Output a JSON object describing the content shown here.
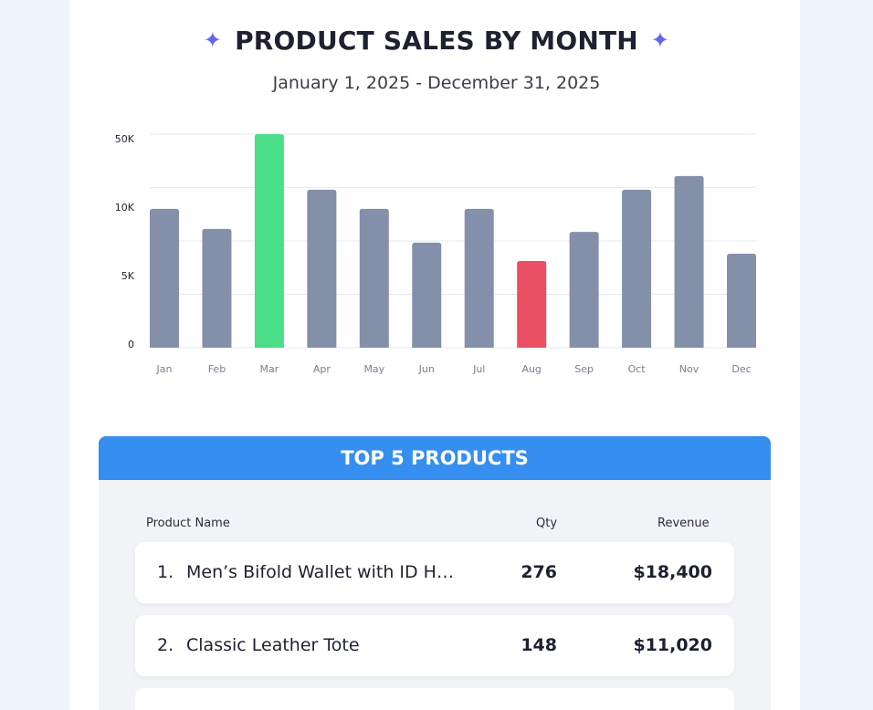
{
  "header": {
    "title": "PRODUCT SALES BY MONTH",
    "subtitle": "January 1, 2025 - December 31, 2025",
    "sparkle_icon": "sparkle-icon",
    "accent": "#6366f1"
  },
  "chart_data": {
    "type": "bar",
    "title": "PRODUCT SALES BY MONTH",
    "categories": [
      "Jan",
      "Feb",
      "Mar",
      "Apr",
      "May",
      "Jun",
      "Jul",
      "Aug",
      "Sep",
      "Oct",
      "Nov",
      "Dec"
    ],
    "values": [
      32500,
      27800,
      50000,
      37000,
      32500,
      24600,
      32500,
      20300,
      27100,
      37000,
      40200,
      22000
    ],
    "ytick_labels": [
      "0",
      "5K",
      "10K",
      "50K"
    ],
    "ylim": [
      0,
      50000
    ],
    "grid": true,
    "colors": {
      "default": "#8490aa",
      "highest": "#4ade88",
      "lowest": "#ea4f64"
    },
    "highlight": {
      "Mar": "highest",
      "Aug": "lowest"
    }
  },
  "table": {
    "title": "TOP 5 PRODUCTS",
    "header_color": "#358ef0",
    "columns": [
      "Product Name",
      "Qty",
      "Revenue"
    ],
    "rows": [
      {
        "rank": "1.",
        "name": "Men’s Bifold Wallet with ID Hol...",
        "qty": "276",
        "revenue": "$18,400"
      },
      {
        "rank": "2.",
        "name": "Classic Leather Tote",
        "qty": "148",
        "revenue": "$11,020"
      },
      {
        "rank": "",
        "name": "",
        "qty": "",
        "revenue": ""
      }
    ]
  }
}
